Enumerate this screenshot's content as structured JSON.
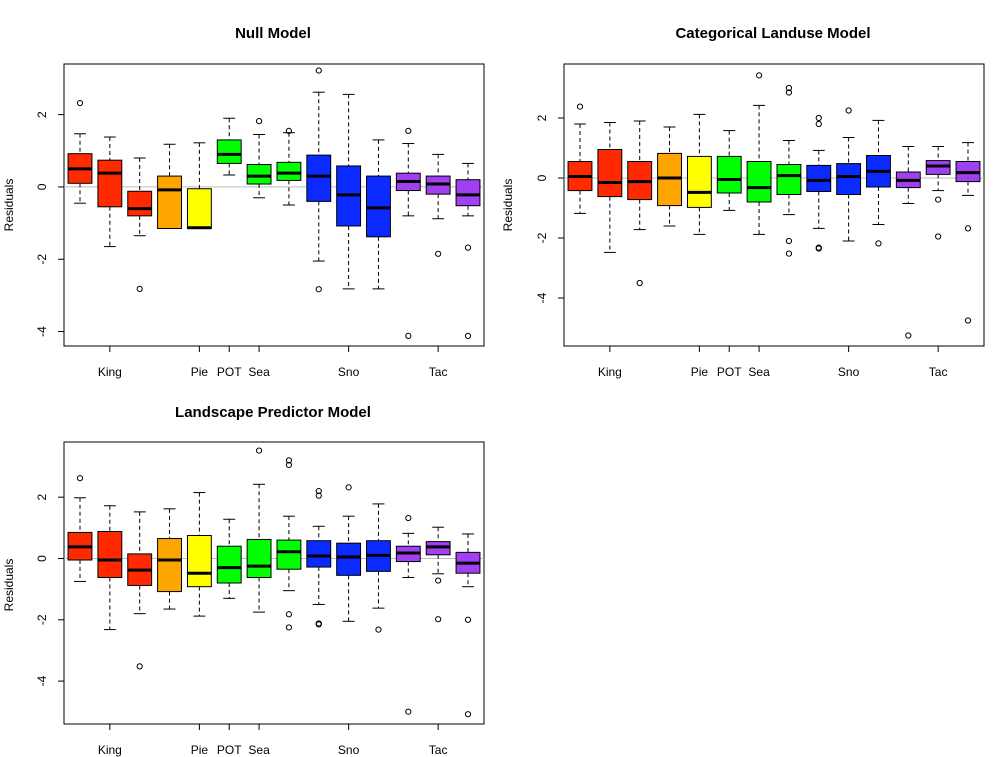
{
  "chart_data": [
    {
      "type": "boxplot",
      "title": "Null Model",
      "ylabel": "Residuals",
      "ylim": [
        -4.4,
        3.4
      ],
      "yticks": [
        -4,
        -2,
        0,
        2
      ],
      "reference_line": 0,
      "category_labels": [
        "King",
        "Pie",
        "POT",
        "Sea",
        "Sno",
        "Tac"
      ],
      "boxes": [
        {
          "group": "King",
          "color": "#ff2a00",
          "wlo": -0.45,
          "q1": 0.1,
          "med": 0.5,
          "q3": 0.92,
          "whi": 1.47,
          "outliers": [
            2.32
          ]
        },
        {
          "group": "King",
          "color": "#ff2a00",
          "wlo": -1.65,
          "q1": -0.55,
          "med": 0.38,
          "q3": 0.74,
          "whi": 1.38,
          "outliers": []
        },
        {
          "group": "King",
          "color": "#ff2a00",
          "wlo": -1.35,
          "q1": -0.8,
          "med": -0.6,
          "q3": -0.12,
          "whi": 0.8,
          "outliers": [
            -2.82
          ]
        },
        {
          "group": "Pie",
          "color": "#ffa500",
          "wlo": -1.15,
          "q1": -1.15,
          "med": -0.08,
          "q3": 0.3,
          "whi": 1.18,
          "outliers": []
        },
        {
          "group": "POT",
          "color": "#ffff00",
          "wlo": -1.15,
          "q1": -1.15,
          "med": -1.13,
          "q3": -0.05,
          "whi": 1.22,
          "outliers": []
        },
        {
          "group": "Sea",
          "color": "#00ff00",
          "wlo": 0.33,
          "q1": 0.65,
          "med": 0.9,
          "q3": 1.3,
          "whi": 1.9,
          "outliers": []
        },
        {
          "group": "Sea",
          "color": "#00ff00",
          "wlo": -0.3,
          "q1": 0.08,
          "med": 0.3,
          "q3": 0.62,
          "whi": 1.45,
          "outliers": [
            1.82
          ]
        },
        {
          "group": "Sea",
          "color": "#00ff00",
          "wlo": -0.5,
          "q1": 0.18,
          "med": 0.38,
          "q3": 0.68,
          "whi": 1.5,
          "outliers": [
            1.55
          ]
        },
        {
          "group": "Sno",
          "color": "#0a2aff",
          "wlo": -2.05,
          "q1": -0.4,
          "med": 0.3,
          "q3": 0.88,
          "whi": 2.62,
          "outliers": [
            3.22,
            -2.83
          ]
        },
        {
          "group": "Sno",
          "color": "#0a2aff",
          "wlo": -2.82,
          "q1": -1.08,
          "med": -0.22,
          "q3": 0.58,
          "whi": 2.56,
          "outliers": []
        },
        {
          "group": "Sno",
          "color": "#0a2aff",
          "wlo": -2.82,
          "q1": -1.38,
          "med": -0.58,
          "q3": 0.3,
          "whi": 1.3,
          "outliers": []
        },
        {
          "group": "Tac",
          "color": "#a040f0",
          "wlo": -0.8,
          "q1": -0.1,
          "med": 0.15,
          "q3": 0.38,
          "whi": 1.2,
          "outliers": [
            1.55,
            -4.12
          ]
        },
        {
          "group": "Tac",
          "color": "#a040f0",
          "wlo": -0.88,
          "q1": -0.2,
          "med": 0.08,
          "q3": 0.3,
          "whi": 0.9,
          "outliers": [
            -1.85
          ]
        },
        {
          "group": "Tac",
          "color": "#a040f0",
          "wlo": -0.8,
          "q1": -0.52,
          "med": -0.22,
          "q3": 0.2,
          "whi": 0.65,
          "outliers": [
            -1.68,
            -4.12
          ]
        }
      ]
    },
    {
      "type": "boxplot",
      "title": "Categorical Landuse Model",
      "ylabel": "Residuals",
      "ylim": [
        -5.6,
        3.8
      ],
      "yticks": [
        -4,
        -2,
        0,
        2
      ],
      "reference_line": 0,
      "category_labels": [
        "King",
        "Pie",
        "POT",
        "Sea",
        "Sno",
        "Tac"
      ],
      "boxes": [
        {
          "group": "King",
          "color": "#ff2a00",
          "wlo": -1.18,
          "q1": -0.42,
          "med": 0.05,
          "q3": 0.55,
          "whi": 1.8,
          "outliers": [
            2.38
          ]
        },
        {
          "group": "King",
          "color": "#ff2a00",
          "wlo": -2.48,
          "q1": -0.62,
          "med": -0.15,
          "q3": 0.95,
          "whi": 1.85,
          "outliers": []
        },
        {
          "group": "King",
          "color": "#ff2a00",
          "wlo": -1.72,
          "q1": -0.72,
          "med": -0.12,
          "q3": 0.55,
          "whi": 1.9,
          "outliers": [
            -3.5
          ]
        },
        {
          "group": "Pie",
          "color": "#ffa500",
          "wlo": -1.6,
          "q1": -0.92,
          "med": 0.0,
          "q3": 0.82,
          "whi": 1.7,
          "outliers": []
        },
        {
          "group": "POT",
          "color": "#ffff00",
          "wlo": -1.88,
          "q1": -0.98,
          "med": -0.48,
          "q3": 0.72,
          "whi": 2.12,
          "outliers": []
        },
        {
          "group": "Sea",
          "color": "#00ff00",
          "wlo": -1.08,
          "q1": -0.5,
          "med": -0.05,
          "q3": 0.72,
          "whi": 1.58,
          "outliers": []
        },
        {
          "group": "Sea",
          "color": "#00ff00",
          "wlo": -1.88,
          "q1": -0.8,
          "med": -0.32,
          "q3": 0.55,
          "whi": 2.42,
          "outliers": [
            3.42
          ]
        },
        {
          "group": "Sea",
          "color": "#00ff00",
          "wlo": -1.22,
          "q1": -0.55,
          "med": 0.08,
          "q3": 0.45,
          "whi": 1.25,
          "outliers": [
            2.85,
            3.0,
            -2.1,
            -2.52
          ]
        },
        {
          "group": "Sno",
          "color": "#0a2aff",
          "wlo": -1.68,
          "q1": -0.45,
          "med": -0.08,
          "q3": 0.42,
          "whi": 0.92,
          "outliers": [
            1.8,
            2.0,
            -2.32,
            -2.35
          ]
        },
        {
          "group": "Sno",
          "color": "#0a2aff",
          "wlo": -2.1,
          "q1": -0.55,
          "med": 0.05,
          "q3": 0.48,
          "whi": 1.35,
          "outliers": [
            2.25
          ]
        },
        {
          "group": "Sno",
          "color": "#0a2aff",
          "wlo": -1.55,
          "q1": -0.3,
          "med": 0.22,
          "q3": 0.75,
          "whi": 1.92,
          "outliers": [
            -2.18
          ]
        },
        {
          "group": "Tac",
          "color": "#a040f0",
          "wlo": -0.85,
          "q1": -0.32,
          "med": -0.08,
          "q3": 0.2,
          "whi": 1.05,
          "outliers": [
            -5.25
          ]
        },
        {
          "group": "Tac",
          "color": "#a040f0",
          "wlo": -0.42,
          "q1": 0.12,
          "med": 0.4,
          "q3": 0.58,
          "whi": 1.05,
          "outliers": [
            -0.72,
            -1.95
          ]
        },
        {
          "group": "Tac",
          "color": "#a040f0",
          "wlo": -0.58,
          "q1": -0.12,
          "med": 0.18,
          "q3": 0.55,
          "whi": 1.18,
          "outliers": [
            -1.68,
            -4.75
          ]
        }
      ]
    },
    {
      "type": "boxplot",
      "title": "Landscape Predictor Model",
      "ylabel": "Residuals",
      "ylim": [
        -5.4,
        3.8
      ],
      "yticks": [
        -4,
        -2,
        0,
        2
      ],
      "reference_line": 0,
      "category_labels": [
        "King",
        "Pie",
        "POT",
        "Sea",
        "Sno",
        "Tac"
      ],
      "boxes": [
        {
          "group": "King",
          "color": "#ff2a00",
          "wlo": -0.75,
          "q1": -0.05,
          "med": 0.38,
          "q3": 0.85,
          "whi": 1.98,
          "outliers": [
            2.62
          ]
        },
        {
          "group": "King",
          "color": "#ff2a00",
          "wlo": -2.32,
          "q1": -0.62,
          "med": -0.05,
          "q3": 0.88,
          "whi": 1.72,
          "outliers": []
        },
        {
          "group": "King",
          "color": "#ff2a00",
          "wlo": -1.8,
          "q1": -0.88,
          "med": -0.38,
          "q3": 0.15,
          "whi": 1.52,
          "outliers": [
            -3.52
          ]
        },
        {
          "group": "Pie",
          "color": "#ffa500",
          "wlo": -1.65,
          "q1": -1.08,
          "med": -0.05,
          "q3": 0.65,
          "whi": 1.62,
          "outliers": []
        },
        {
          "group": "POT",
          "color": "#ffff00",
          "wlo": -1.88,
          "q1": -0.92,
          "med": -0.48,
          "q3": 0.75,
          "whi": 2.15,
          "outliers": []
        },
        {
          "group": "Sea",
          "color": "#00ff00",
          "wlo": -1.3,
          "q1": -0.8,
          "med": -0.3,
          "q3": 0.4,
          "whi": 1.28,
          "outliers": []
        },
        {
          "group": "Sea",
          "color": "#00ff00",
          "wlo": -1.75,
          "q1": -0.62,
          "med": -0.25,
          "q3": 0.62,
          "whi": 2.42,
          "outliers": [
            3.52
          ]
        },
        {
          "group": "Sea",
          "color": "#00ff00",
          "wlo": -1.05,
          "q1": -0.35,
          "med": 0.22,
          "q3": 0.6,
          "whi": 1.38,
          "outliers": [
            3.05,
            3.2,
            -1.82,
            -2.25
          ]
        },
        {
          "group": "Sno",
          "color": "#0a2aff",
          "wlo": -1.5,
          "q1": -0.28,
          "med": 0.08,
          "q3": 0.58,
          "whi": 1.05,
          "outliers": [
            2.05,
            2.2,
            -2.12,
            -2.15
          ]
        },
        {
          "group": "Sno",
          "color": "#0a2aff",
          "wlo": -2.05,
          "q1": -0.55,
          "med": 0.05,
          "q3": 0.5,
          "whi": 1.38,
          "outliers": [
            2.32
          ]
        },
        {
          "group": "Sno",
          "color": "#0a2aff",
          "wlo": -1.62,
          "q1": -0.42,
          "med": 0.1,
          "q3": 0.58,
          "whi": 1.78,
          "outliers": [
            -2.32
          ]
        },
        {
          "group": "Tac",
          "color": "#a040f0",
          "wlo": -0.62,
          "q1": -0.1,
          "med": 0.18,
          "q3": 0.4,
          "whi": 0.82,
          "outliers": [
            1.32,
            -5.0
          ]
        },
        {
          "group": "Tac",
          "color": "#a040f0",
          "wlo": -0.5,
          "q1": 0.12,
          "med": 0.38,
          "q3": 0.55,
          "whi": 1.02,
          "outliers": [
            -0.72,
            -1.98
          ]
        },
        {
          "group": "Tac",
          "color": "#a040f0",
          "wlo": -0.92,
          "q1": -0.48,
          "med": -0.15,
          "q3": 0.2,
          "whi": 0.8,
          "outliers": [
            -2.0,
            -5.08
          ]
        }
      ]
    }
  ]
}
